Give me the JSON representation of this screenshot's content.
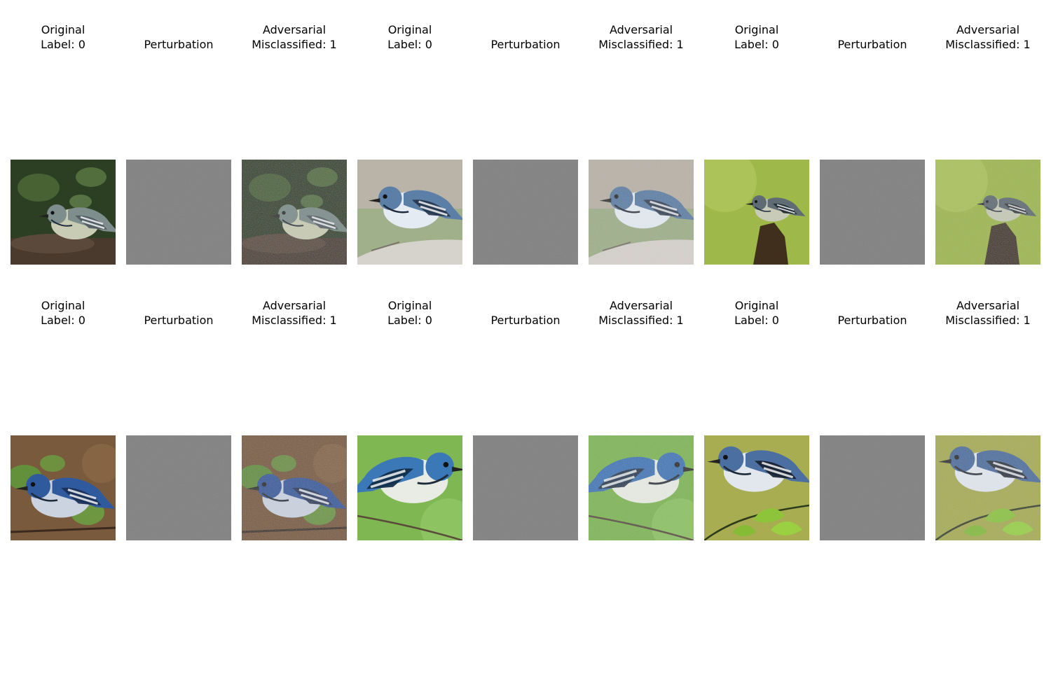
{
  "figure": {
    "rows": [
      {
        "groups": [
          {
            "original_title": "Original\nLabel: 0",
            "perturbation_title": "Perturbation",
            "adversarial_title": "Adversarial\nMisclassified: 1",
            "scene": "dark-green-foliage-warbler"
          },
          {
            "original_title": "Original\nLabel: 0",
            "perturbation_title": "Perturbation",
            "adversarial_title": "Adversarial\nMisclassified: 1",
            "scene": "blue-warbler-on-birch-branch"
          },
          {
            "original_title": "Original\nLabel: 0",
            "perturbation_title": "Perturbation",
            "adversarial_title": "Adversarial\nMisclassified: 1",
            "scene": "warbler-on-stump-green-background"
          }
        ]
      },
      {
        "groups": [
          {
            "original_title": "Original\nLabel: 0",
            "perturbation_title": "Perturbation",
            "adversarial_title": "Adversarial\nMisclassified: 1",
            "scene": "blue-warbler-brown-leaf-background"
          },
          {
            "original_title": "Original\nLabel: 0",
            "perturbation_title": "Perturbation",
            "adversarial_title": "Adversarial\nMisclassified: 1",
            "scene": "blue-warbler-closeup-green"
          },
          {
            "original_title": "Original\nLabel: 0",
            "perturbation_title": "Perturbation",
            "adversarial_title": "Adversarial\nMisclassified: 1",
            "scene": "blue-warbler-on-twig-with-leaves"
          }
        ]
      }
    ]
  },
  "colors": {
    "perturbation_gray": "#7f7f7f",
    "text": "#000000",
    "background": "#ffffff"
  }
}
